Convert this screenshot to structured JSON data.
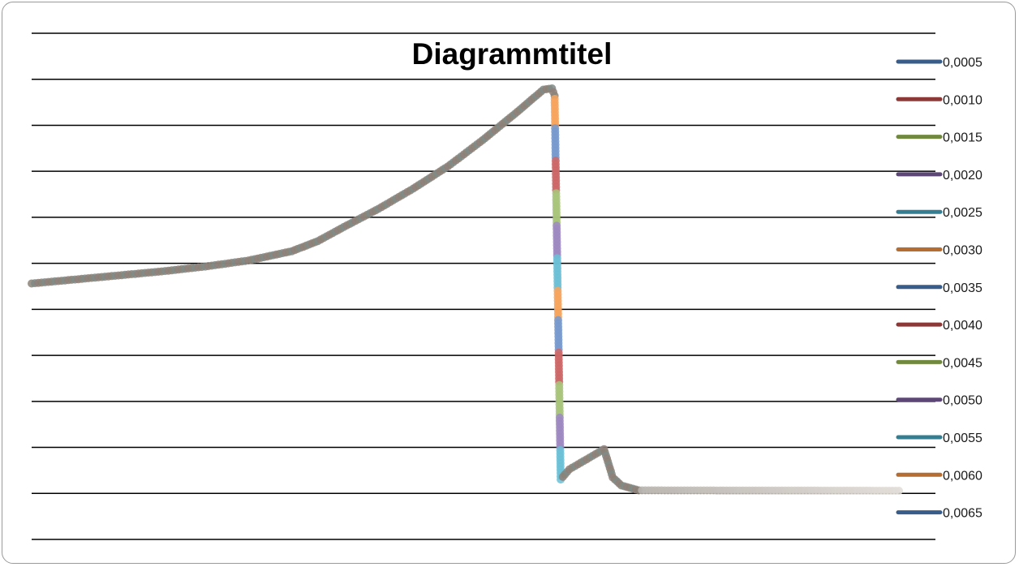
{
  "chart_data": {
    "type": "line",
    "title": "Diagrammtitel",
    "xlabel": "",
    "ylabel": "",
    "grid": true,
    "legend_position": "right",
    "legend": [
      {
        "label": "0,0005",
        "color": "#385d8a"
      },
      {
        "label": "0,0010",
        "color": "#8c3836"
      },
      {
        "label": "0,0015",
        "color": "#71893f"
      },
      {
        "label": "0,0020",
        "color": "#5c4776"
      },
      {
        "label": "0,0025",
        "color": "#357d91"
      },
      {
        "label": "0,0030",
        "color": "#b66d31"
      },
      {
        "label": "0,0035",
        "color": "#385d8a"
      },
      {
        "label": "0,0040",
        "color": "#8c3836"
      },
      {
        "label": "0,0045",
        "color": "#71893f"
      },
      {
        "label": "0,0050",
        "color": "#5c4776"
      },
      {
        "label": "0,0055",
        "color": "#357d91"
      },
      {
        "label": "0,0060",
        "color": "#b66d31"
      },
      {
        "label": "0,0065",
        "color": "#385d8a"
      }
    ],
    "gridline_count": 12,
    "ylim": [
      0,
      11
    ],
    "xlim": [
      0,
      1000
    ],
    "curve": {
      "x": [
        0,
        50,
        100,
        150,
        200,
        250,
        300,
        330,
        360,
        400,
        440,
        480,
        520,
        560,
        590,
        600,
        603,
        610,
        620,
        640,
        660,
        670,
        680,
        700,
        1000
      ],
      "y": [
        5.15,
        5.25,
        5.35,
        5.45,
        5.57,
        5.72,
        5.95,
        6.2,
        6.55,
        7.0,
        7.5,
        8.05,
        8.7,
        9.4,
        9.95,
        9.98,
        9.8,
        0.3,
        0.55,
        0.8,
        1.05,
        0.35,
        0.15,
        0.03,
        0.02
      ]
    },
    "segment_colors": [
      "#f7a35c",
      "#7799cc",
      "#cc6666",
      "#a8c47a",
      "#9c88c0",
      "#6bbfd6",
      "#f7a35c",
      "#7799cc",
      "#cc6666",
      "#a8c47a",
      "#9c88c0",
      "#6bbfd6"
    ]
  }
}
